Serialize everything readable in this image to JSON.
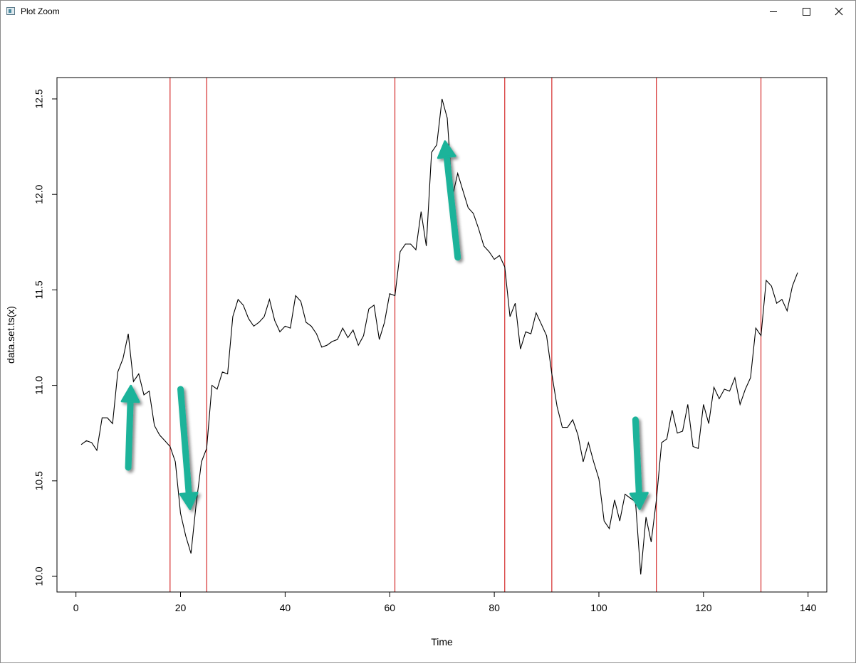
{
  "window": {
    "title": "Plot Zoom",
    "icons": {
      "app": "plot-app-icon",
      "minimize": "minimize-icon",
      "maximize": "maximize-icon",
      "close": "close-icon"
    }
  },
  "chart_data": {
    "type": "line",
    "title": "",
    "xlabel": "Time",
    "ylabel": "data.set.ts(x)",
    "xlim": [
      1,
      138
    ],
    "ylim": [
      10.0,
      12.5
    ],
    "x_ticks": [
      0,
      20,
      40,
      60,
      80,
      100,
      120,
      140
    ],
    "x_tick_labels": [
      "0",
      "20",
      "40",
      "60",
      "80",
      "100",
      "120",
      "140"
    ],
    "y_ticks": [
      10.0,
      10.5,
      11.0,
      11.5,
      12.0,
      12.5
    ],
    "y_tick_labels": [
      "10.0",
      "10.5",
      "11.0",
      "11.5",
      "12.0",
      "12.5"
    ],
    "grid": false,
    "series_color": "#000000",
    "vline_color": "#cc0000",
    "arrow_color": "#1ab39a",
    "vlines": [
      18,
      25,
      61,
      82,
      91,
      111,
      131
    ],
    "x": [
      1,
      2,
      3,
      4,
      5,
      6,
      7,
      8,
      9,
      10,
      11,
      12,
      13,
      14,
      15,
      16,
      17,
      18,
      19,
      20,
      21,
      22,
      23,
      24,
      25,
      26,
      27,
      28,
      29,
      30,
      31,
      32,
      33,
      34,
      35,
      36,
      37,
      38,
      39,
      40,
      41,
      42,
      43,
      44,
      45,
      46,
      47,
      48,
      49,
      50,
      51,
      52,
      53,
      54,
      55,
      56,
      57,
      58,
      59,
      60,
      61,
      62,
      63,
      64,
      65,
      66,
      67,
      68,
      69,
      70,
      71,
      72,
      73,
      74,
      75,
      76,
      77,
      78,
      79,
      80,
      81,
      82,
      83,
      84,
      85,
      86,
      87,
      88,
      89,
      90,
      91,
      92,
      93,
      94,
      95,
      96,
      97,
      98,
      99,
      100,
      101,
      102,
      103,
      104,
      105,
      106,
      107,
      108,
      109,
      110,
      111,
      112,
      113,
      114,
      115,
      116,
      117,
      118,
      119,
      120,
      121,
      122,
      123,
      124,
      125,
      126,
      127,
      128,
      129,
      130,
      131,
      132,
      133,
      134,
      135,
      136,
      137,
      138
    ],
    "y": [
      10.69,
      10.71,
      10.7,
      10.66,
      10.83,
      10.83,
      10.8,
      11.07,
      11.14,
      11.27,
      11.02,
      11.06,
      10.95,
      10.97,
      10.79,
      10.74,
      10.71,
      10.68,
      10.6,
      10.33,
      10.21,
      10.12,
      10.38,
      10.6,
      10.67,
      11.0,
      10.98,
      11.07,
      11.06,
      11.36,
      11.45,
      11.42,
      11.35,
      11.31,
      11.33,
      11.36,
      11.45,
      11.34,
      11.28,
      11.31,
      11.3,
      11.47,
      11.44,
      11.33,
      11.31,
      11.27,
      11.2,
      11.21,
      11.23,
      11.24,
      11.3,
      11.25,
      11.29,
      11.21,
      11.26,
      11.4,
      11.42,
      11.24,
      11.33,
      11.48,
      11.47,
      11.7,
      11.74,
      11.74,
      11.71,
      11.91,
      11.73,
      12.22,
      12.26,
      12.5,
      12.4,
      11.99,
      12.11,
      12.02,
      11.93,
      11.9,
      11.82,
      11.73,
      11.7,
      11.66,
      11.68,
      11.62,
      11.36,
      11.43,
      11.19,
      11.28,
      11.27,
      11.38,
      11.32,
      11.26,
      11.06,
      10.89,
      10.78,
      10.78,
      10.82,
      10.74,
      10.6,
      10.7,
      10.6,
      10.51,
      10.29,
      10.25,
      10.4,
      10.29,
      10.43,
      10.41,
      10.39,
      10.01,
      10.31,
      10.18,
      10.4,
      10.7,
      10.72,
      10.87,
      10.75,
      10.76,
      10.9,
      10.68,
      10.67,
      10.9,
      10.8,
      10.99,
      10.93,
      10.98,
      10.97,
      11.04,
      10.9,
      10.98,
      11.04,
      11.3,
      11.26,
      11.55,
      11.52,
      11.43,
      11.45,
      11.39,
      11.52,
      11.59
    ],
    "annotations": [
      {
        "shape": "arrow",
        "name": "arrow-up-1",
        "from": [
          10,
          10.57
        ],
        "to": [
          10.5,
          10.99
        ]
      },
      {
        "shape": "arrow",
        "name": "arrow-down-1",
        "from": [
          20,
          10.98
        ],
        "to": [
          21.8,
          10.36
        ]
      },
      {
        "shape": "arrow",
        "name": "arrow-up-2",
        "from": [
          73,
          11.67
        ],
        "to": [
          70.6,
          12.27
        ]
      },
      {
        "shape": "arrow",
        "name": "arrow-down-2",
        "from": [
          107,
          10.82
        ],
        "to": [
          107.8,
          10.36
        ]
      }
    ]
  }
}
